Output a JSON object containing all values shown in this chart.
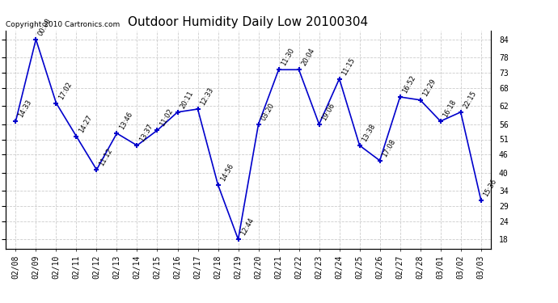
{
  "title": "Outdoor Humidity Daily Low 20100304",
  "copyright": "Copyright 2010 Cartronics.com",
  "x_labels": [
    "02/08",
    "02/09",
    "02/10",
    "02/11",
    "02/12",
    "02/13",
    "02/14",
    "02/15",
    "02/16",
    "02/17",
    "02/18",
    "02/19",
    "02/20",
    "02/21",
    "02/22",
    "02/23",
    "02/24",
    "02/25",
    "02/26",
    "02/27",
    "02/28",
    "03/01",
    "03/02",
    "03/03"
  ],
  "y_values": [
    57,
    84,
    63,
    52,
    41,
    53,
    49,
    54,
    60,
    61,
    36,
    18,
    56,
    74,
    74,
    56,
    71,
    49,
    44,
    65,
    64,
    57,
    60,
    31
  ],
  "time_labels": [
    "14:33",
    "00:00",
    "17:02",
    "14:27",
    "11:12",
    "13:46",
    "13:37",
    "11:02",
    "20:11",
    "12:33",
    "14:56",
    "12:44",
    "03:20",
    "11:30",
    "20:04",
    "19:06",
    "11:15",
    "13:38",
    "17:08",
    "16:52",
    "12:29",
    "16:18",
    "22:15",
    "15:36"
  ],
  "y_ticks": [
    18,
    24,
    29,
    34,
    40,
    46,
    51,
    56,
    62,
    68,
    73,
    78,
    84
  ],
  "ylim": [
    15,
    87
  ],
  "line_color": "#0000CC",
  "marker_color": "#0000CC",
  "bg_color": "#FFFFFF",
  "grid_color": "#CCCCCC",
  "title_fontsize": 11,
  "label_fontsize": 7,
  "time_fontsize": 6,
  "copyright_fontsize": 6.5
}
